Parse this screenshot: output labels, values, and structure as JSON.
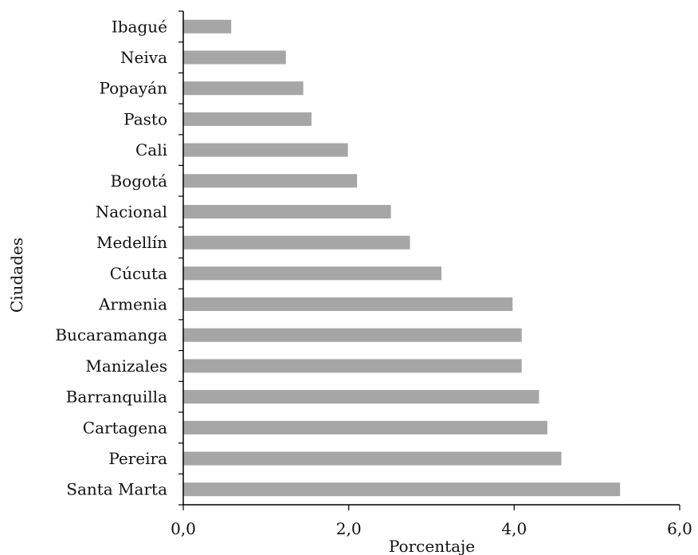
{
  "chart_data": {
    "type": "bar",
    "orientation": "horizontal",
    "title": "",
    "xlabel": "Porcentaje",
    "ylabel": "Ciudades",
    "xlim": [
      0,
      6
    ],
    "xticks": [
      "0,0",
      "2,0",
      "4,0",
      "6,0"
    ],
    "grid": false,
    "legend": "none",
    "bar_color": "#a6a6a6",
    "categories": [
      "Ibagué",
      "Neiva",
      "Popayán",
      "Pasto",
      "Cali",
      "Bogotá",
      "Nacional",
      "Medellín",
      "Cúcuta",
      "Armenia",
      "Bucaramanga",
      "Manizales",
      "Barranquilla",
      "Cartagena",
      "Pereira",
      "Santa Marta"
    ],
    "values": [
      0.58,
      1.24,
      1.45,
      1.55,
      1.99,
      2.1,
      2.51,
      2.74,
      3.12,
      3.98,
      4.09,
      4.09,
      4.3,
      4.4,
      4.57,
      5.28
    ]
  }
}
